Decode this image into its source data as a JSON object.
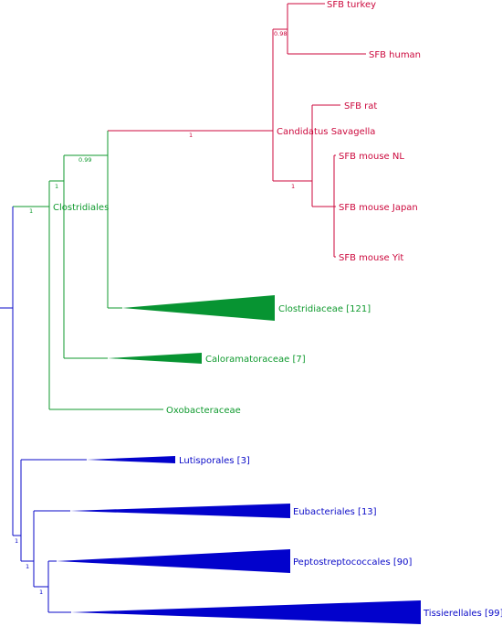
{
  "colors": {
    "sfb": "#cc0a3e",
    "clostridiales": "#0f9a2e",
    "blue": "#0a0ac8",
    "clostridiales_fill": "#079432",
    "blue_fill": "#0202cc"
  },
  "taxa": {
    "sfb_turkey": "SFB  turkey",
    "sfb_human": "SFB human",
    "sfb_rat": "SFB  rat",
    "candidatus": "Candidatus Savagella",
    "sfb_mouse_nl": "SFB  mouse  NL",
    "sfb_mouse_japan": "SFB  mouse  Japan",
    "sfb_mouse_yit": "SFB  mouse  Yit",
    "clostridiales": "Clostridiales",
    "clostridiaceae": "Clostridiaceae  [121]",
    "caloramatoraceae": "Caloramatoraceae  [7]",
    "oxobacteraceae": "Oxobacteraceae",
    "lutisporales": "Lutisporales  [3]",
    "eubacteriales": "Eubacteriales  [13]",
    "peptostreptococcales": "Peptostreptococcales  [90]",
    "tissierellales": "Tissierellales  [99]"
  },
  "support": {
    "turkey_human": "0.98",
    "sfb_clade": "1",
    "mouse_clade": "1",
    "clostridiaceae_sfb": "0.99",
    "with_caloramatoraceae": "1",
    "clostridiales_root": "1",
    "blue_clade": "1",
    "eubacteriales_clade": "1",
    "pepto_tissier": "1"
  }
}
